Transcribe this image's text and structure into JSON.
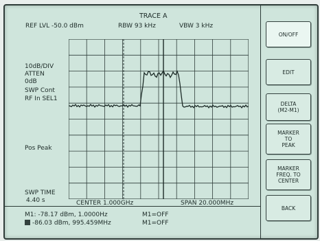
{
  "trace_title": "TRACE A",
  "header": {
    "ref_lvl": "REF LVL -50.0 dBm",
    "rbw": "RBW    93 kHz",
    "vbw": "VBW    3 kHz"
  },
  "left_labels": {
    "scale_1": "10dB/DIV",
    "scale_2": "ATTEN",
    "scale_3": "0dB",
    "swp_cont": "SWP Cont",
    "rf_in": "RF In SEL1",
    "pos_peak": "Pos Peak",
    "swp_time_label": "SWP TIME",
    "swp_time_value": "4.40 s"
  },
  "freq": {
    "center": "CENTER   1.000GHz",
    "span": "SPAN   20.000MHz"
  },
  "markers": {
    "m1_text": "M1: -78.17 dBm, 1.0000Hz",
    "m1_state": "M1=OFF",
    "m2_text": "-86.03 dBm, 995.459MHz",
    "m2_state": "M1=OFF"
  },
  "softkeys": {
    "on_off": "ON/OFF",
    "edit": "EDIT",
    "delta": [
      "DELTA",
      "(M2-M1)"
    ],
    "marker_to_peak": [
      "MARKER",
      "TO",
      "PEAK"
    ],
    "marker_freq_center": [
      "MARKER",
      "FREQ. TO",
      "CENTER"
    ],
    "back": "BACK"
  },
  "colors": {
    "background": "#cfe5dc",
    "grid": "#2f3d3a",
    "trace": "#1c2a27"
  }
}
